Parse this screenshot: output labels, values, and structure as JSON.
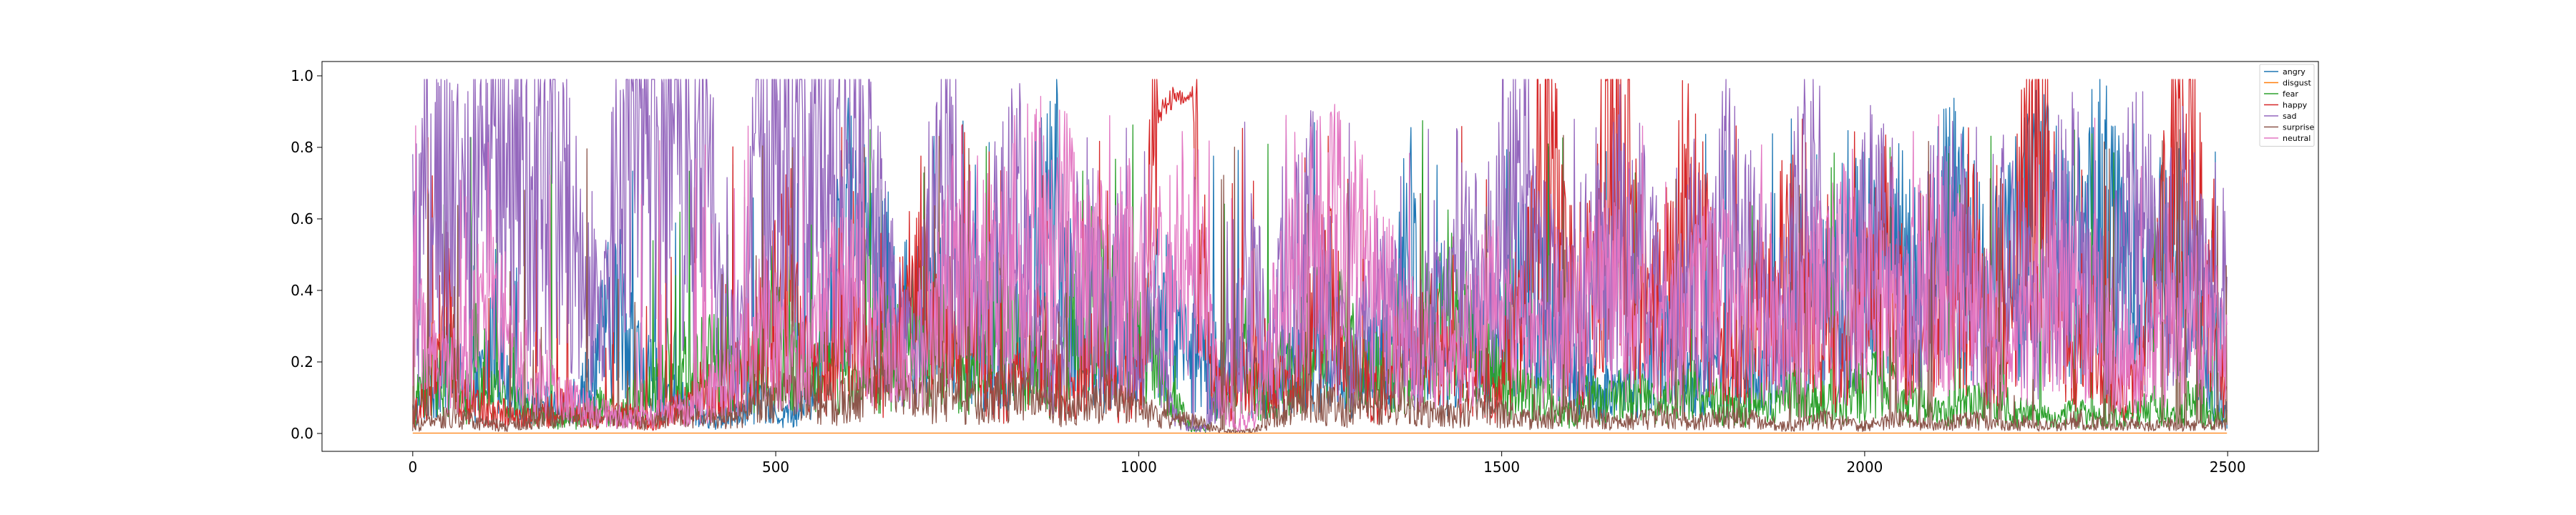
{
  "chart_data": {
    "type": "line",
    "title": "",
    "xlabel": "",
    "ylabel": "",
    "xlim": [
      -125,
      2625
    ],
    "ylim": [
      -0.05,
      1.04
    ],
    "xticks": [
      0,
      500,
      1000,
      1500,
      2000,
      2500
    ],
    "xtick_labels": [
      "0",
      "500",
      "1000",
      "1500",
      "2000",
      "2500"
    ],
    "yticks": [
      0.0,
      0.2,
      0.4,
      0.6,
      0.8,
      1.0
    ],
    "ytick_labels": [
      "0.0",
      "0.2",
      "0.4",
      "0.6",
      "0.8",
      "1.0"
    ],
    "grid": false,
    "legend_position": "top-right",
    "n_points": 2500,
    "series": [
      {
        "name": "angry",
        "color": "#1f77b4",
        "values": [
          0.05,
          0.12,
          0.2,
          0.15,
          0.12,
          0.25,
          0.15,
          0.08,
          0.1,
          0.06,
          0.1,
          0.15,
          0.3,
          0.35,
          0.2,
          0.15,
          0.1,
          0.08,
          0.05,
          0.04,
          0.06,
          0.1,
          0.08,
          0.05,
          0.06,
          0.12,
          0.4,
          0.6,
          0.5,
          0.45,
          0.35,
          0.3,
          0.3,
          0.35,
          0.4,
          0.3,
          0.2,
          0.15,
          0.25,
          0.5,
          0.65,
          0.35,
          0.2,
          0.15,
          0.25,
          0.2,
          0.3,
          0.35,
          0.25,
          0.2,
          0.15,
          0.2,
          0.18,
          0.15,
          0.12,
          0.2,
          0.22,
          0.18,
          0.15,
          0.1,
          0.25,
          0.2,
          0.55,
          0.3,
          0.2,
          0.15,
          0.25,
          0.2,
          0.3,
          0.4,
          0.35,
          0.3,
          0.2,
          0.15,
          0.12,
          0.1,
          0.15,
          0.2,
          0.25,
          0.15,
          0.12,
          0.18,
          0.1,
          0.2,
          0.15,
          0.25,
          0.35,
          0.3,
          0.4,
          0.35,
          0.45,
          0.5,
          0.55,
          0.45,
          0.4,
          0.5,
          0.55,
          0.5,
          0.4,
          0.45,
          0.5,
          0.6,
          0.55,
          0.45,
          0.5,
          0.6,
          0.55,
          0.35,
          0.4,
          0.45,
          0.5,
          0.35,
          0.1,
          0.05
        ]
      },
      {
        "name": "disgust",
        "color": "#ff7f0e",
        "values": [
          0.001,
          0.001,
          0.001,
          0.001,
          0.001,
          0.001,
          0.001,
          0.001,
          0.001,
          0.001,
          0.001,
          0.001,
          0.001,
          0.001,
          0.001,
          0.001,
          0.001,
          0.001,
          0.001,
          0.001,
          0.001,
          0.001,
          0.001,
          0.001,
          0.001,
          0.001,
          0.001,
          0.001,
          0.001,
          0.001,
          0.001,
          0.001,
          0.001,
          0.001,
          0.001,
          0.001,
          0.001,
          0.001,
          0.001,
          0.001,
          0.001,
          0.001,
          0.001,
          0.001,
          0.001,
          0.001,
          0.001,
          0.001,
          0.001,
          0.001
        ]
      },
      {
        "name": "fear",
        "color": "#2ca02c",
        "values": [
          0.05,
          0.2,
          0.15,
          0.1,
          0.12,
          0.1,
          0.08,
          0.06,
          0.05,
          0.04,
          0.05,
          0.08,
          0.06,
          0.1,
          0.12,
          0.18,
          0.15,
          0.2,
          0.18,
          0.15,
          0.2,
          0.25,
          0.22,
          0.18,
          0.2,
          0.15,
          0.12,
          0.2,
          0.25,
          0.3,
          0.28,
          0.25,
          0.2,
          0.25,
          0.3,
          0.25,
          0.2,
          0.15,
          0.3,
          0.32,
          0.35,
          0.3,
          0.25,
          0.2,
          0.1,
          0.02,
          0.01,
          0.15,
          0.2,
          0.1,
          0.15,
          0.2,
          0.25,
          0.3,
          0.25,
          0.2,
          0.15,
          0.2,
          0.25,
          0.3,
          0.35,
          0.3,
          0.2,
          0.15,
          0.12,
          0.1,
          0.08,
          0.05,
          0.1,
          0.08,
          0.12,
          0.1,
          0.08,
          0.1,
          0.12,
          0.1,
          0.08,
          0.06,
          0.1,
          0.08,
          0.12,
          0.1,
          0.08,
          0.1,
          0.12,
          0.15,
          0.1,
          0.08,
          0.06,
          0.05,
          0.08,
          0.1,
          0.08,
          0.06,
          0.05,
          0.04,
          0.06,
          0.05,
          0.04,
          0.05,
          0.06,
          0.08,
          0.05,
          0.1,
          0.05,
          0.04
        ]
      },
      {
        "name": "happy",
        "color": "#d62728",
        "values": [
          0.05,
          0.12,
          0.4,
          0.1,
          0.08,
          0.06,
          0.05,
          0.04,
          0.06,
          0.08,
          0.05,
          0.04,
          0.06,
          0.05,
          0.03,
          0.05,
          0.08,
          0.12,
          0.1,
          0.15,
          0.2,
          0.3,
          0.45,
          0.2,
          0.15,
          0.25,
          0.3,
          0.2,
          0.15,
          0.35,
          0.4,
          0.25,
          0.2,
          0.3,
          0.15,
          0.1,
          0.2,
          0.25,
          0.15,
          0.1,
          0.2,
          0.15,
          0.1,
          0.2,
          0.92,
          0.98,
          0.97,
          0.2,
          0.1,
          0.15,
          0.2,
          0.15,
          0.1,
          0.3,
          0.4,
          0.2,
          0.15,
          0.1,
          0.2,
          0.25,
          0.3,
          0.2,
          0.15,
          0.2,
          0.1,
          0.3,
          0.5,
          0.85,
          0.4,
          0.3,
          0.6,
          0.88,
          0.5,
          0.3,
          0.4,
          0.6,
          0.5,
          0.3,
          0.2,
          0.4,
          0.3,
          0.5,
          0.4,
          0.3,
          0.2,
          0.3,
          0.4,
          0.5,
          0.3,
          0.2,
          0.4,
          0.3,
          0.5,
          0.2,
          0.3,
          0.6,
          0.8,
          0.3,
          0.2,
          0.3,
          0.15,
          0.1,
          0.2,
          0.4,
          0.8,
          0.78,
          0.3,
          0.1
        ]
      },
      {
        "name": "sad",
        "color": "#9467bd",
        "values": [
          0.45,
          0.7,
          0.65,
          0.6,
          0.7,
          0.75,
          0.65,
          0.72,
          0.78,
          0.6,
          0.5,
          0.3,
          0.8,
          0.78,
          0.82,
          0.8,
          0.75,
          0.7,
          0.3,
          0.2,
          0.75,
          0.8,
          0.85,
          0.8,
          0.7,
          0.6,
          0.85,
          0.5,
          0.3,
          0.2,
          0.6,
          0.75,
          0.4,
          0.3,
          0.5,
          0.6,
          0.3,
          0.2,
          0.4,
          0.5,
          0.3,
          0.4,
          0.2,
          0.3,
          0.05,
          0.01,
          0.02,
          0.2,
          0.3,
          0.4,
          0.3,
          0.5,
          0.6,
          0.4,
          0.2,
          0.3,
          0.4,
          0.3,
          0.2,
          0.4,
          0.3,
          0.5,
          0.4,
          0.6,
          0.7,
          0.5,
          0.4,
          0.3,
          0.5,
          0.4,
          0.6,
          0.5,
          0.4,
          0.3,
          0.5,
          0.4,
          0.6,
          0.5,
          0.4,
          0.3,
          0.5,
          0.7,
          0.4,
          0.3,
          0.5,
          0.6,
          0.4,
          0.3,
          0.5,
          0.6,
          0.4,
          0.3,
          0.5,
          0.4,
          0.3,
          0.5,
          0.6,
          0.4,
          0.3,
          0.5,
          0.6,
          0.4,
          0.55,
          0.5,
          0.3,
          0.45
        ]
      },
      {
        "name": "surprise",
        "color": "#8c564b",
        "values": [
          0.02,
          0.03,
          0.05,
          0.04,
          0.03,
          0.02,
          0.03,
          0.04,
          0.05,
          0.06,
          0.05,
          0.04,
          0.03,
          0.04,
          0.05,
          0.06,
          0.05,
          0.04,
          0.06,
          0.08,
          0.1,
          0.12,
          0.1,
          0.08,
          0.1,
          0.12,
          0.15,
          0.12,
          0.1,
          0.12,
          0.1,
          0.08,
          0.1,
          0.12,
          0.1,
          0.08,
          0.06,
          0.08,
          0.1,
          0.08,
          0.06,
          0.05,
          0.04,
          0.03,
          0.01,
          0.005,
          0.01,
          0.05,
          0.08,
          0.1,
          0.08,
          0.06,
          0.08,
          0.1,
          0.08,
          0.06,
          0.05,
          0.06,
          0.08,
          0.06,
          0.05,
          0.04,
          0.05,
          0.06,
          0.05,
          0.04,
          0.03,
          0.04,
          0.05,
          0.04,
          0.03,
          0.04,
          0.05,
          0.04,
          0.03,
          0.02,
          0.03,
          0.04,
          0.03,
          0.02,
          0.03,
          0.04,
          0.03,
          0.02,
          0.03,
          0.04,
          0.03,
          0.02,
          0.03,
          0.02,
          0.03,
          0.04,
          0.03,
          0.02,
          0.03,
          0.02,
          0.03,
          0.02,
          0.03,
          0.02
        ]
      },
      {
        "name": "neutral",
        "color": "#e377c2",
        "values": [
          0.3,
          0.2,
          0.15,
          0.25,
          0.4,
          0.3,
          0.2,
          0.15,
          0.1,
          0.08,
          0.06,
          0.05,
          0.04,
          0.05,
          0.06,
          0.08,
          0.1,
          0.15,
          0.2,
          0.3,
          0.25,
          0.2,
          0.3,
          0.4,
          0.35,
          0.3,
          0.25,
          0.2,
          0.3,
          0.4,
          0.5,
          0.45,
          0.4,
          0.5,
          0.6,
          0.55,
          0.5,
          0.45,
          0.4,
          0.5,
          0.45,
          0.4,
          0.5,
          0.45,
          0.1,
          0.02,
          0.05,
          0.3,
          0.4,
          0.5,
          0.55,
          0.5,
          0.45,
          0.4,
          0.3,
          0.25,
          0.2,
          0.25,
          0.3,
          0.35,
          0.3,
          0.25,
          0.2,
          0.3,
          0.35,
          0.4,
          0.35,
          0.3,
          0.25,
          0.3,
          0.35,
          0.4,
          0.35,
          0.3,
          0.25,
          0.3,
          0.35,
          0.4,
          0.45,
          0.4,
          0.35,
          0.3,
          0.4,
          0.45,
          0.4,
          0.35,
          0.3,
          0.25,
          0.3,
          0.35,
          0.4,
          0.35,
          0.3,
          0.25,
          0.2,
          0.25,
          0.3,
          0.35,
          0.3,
          0.25
        ]
      }
    ]
  }
}
